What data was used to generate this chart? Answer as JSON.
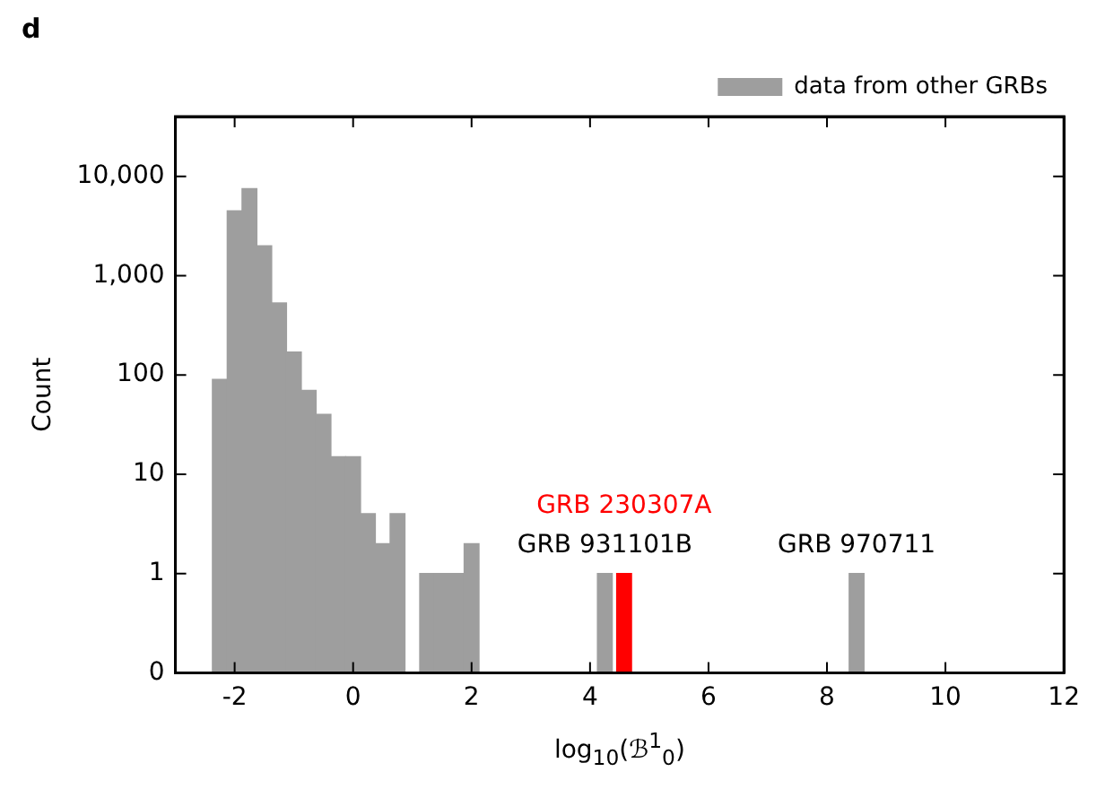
{
  "chart_data": {
    "type": "histogram",
    "title": "d",
    "xlabel": "log$_{10}$(ℬ$^{1}$$_{0}$)",
    "ylabel": "Count",
    "bins": [
      -2.375,
      -2.125,
      -1.875,
      -1.625,
      -1.375,
      -1.125,
      -0.875,
      -0.625,
      -0.375,
      -0.125,
      0.125,
      0.375,
      0.625,
      0.875,
      1.125,
      1.375,
      1.625,
      1.875,
      2.125,
      2.375,
      2.625,
      2.875,
      3.125,
      3.375,
      3.625,
      3.875,
      4.125,
      4.375,
      4.625,
      4.875,
      5.125,
      5.375,
      5.625,
      5.875,
      6.125,
      6.375,
      6.625,
      6.875,
      7.125,
      7.375,
      7.625,
      7.875,
      8.125,
      8.375,
      8.625
    ],
    "series": [
      {
        "name": "data from other GRBs",
        "color": "#9e9e9e",
        "values": [
          90,
          4500,
          7500,
          2000,
          530,
          170,
          70,
          40,
          15,
          15,
          4,
          2,
          4,
          0,
          1,
          1,
          1,
          2,
          0,
          0,
          0,
          0,
          0,
          0,
          0,
          0,
          1,
          0,
          0,
          0,
          0,
          0,
          0,
          0,
          0,
          0,
          0,
          0,
          0,
          0,
          0,
          0,
          0,
          1
        ]
      },
      {
        "name": "GRB 230307A",
        "color": "#ff0000",
        "bins": [
          4.45,
          4.7
        ],
        "values": [
          1
        ]
      }
    ],
    "annotations": [
      {
        "text": "GRB 931101B",
        "x": 4.25,
        "y": 1
      },
      {
        "text": "GRB 970711",
        "x": 8.5,
        "y": 1
      }
    ],
    "xlim": [
      -3,
      12
    ],
    "xticks": [
      -2,
      0,
      2,
      4,
      6,
      8,
      10,
      12
    ],
    "ylim": [
      0,
      40000
    ],
    "yticks": [
      0,
      1,
      10,
      100,
      {
        "value": 1000,
        "label": "1,000"
      },
      {
        "value": 10000,
        "label": "10,000"
      }
    ],
    "log": "y",
    "legend": "top right"
  }
}
